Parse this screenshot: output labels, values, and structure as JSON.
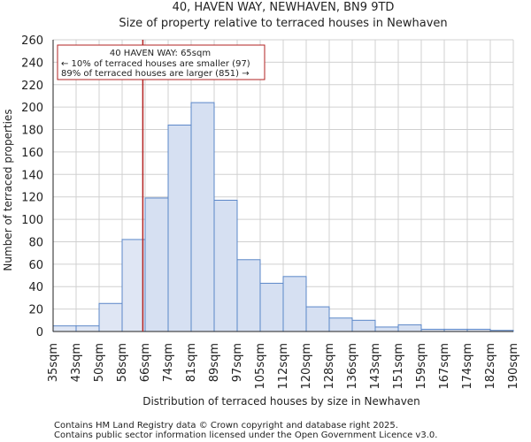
{
  "chart_data": {
    "type": "bar",
    "title": "40, HAVEN WAY, NEWHAVEN, BN9 9TD",
    "subtitle": "Size of property relative to terraced houses in Newhaven",
    "xlabel": "Distribution of terraced houses by size in Newhaven",
    "ylabel": "Number of terraced properties",
    "ylim": [
      0,
      260
    ],
    "yticks": [
      0,
      20,
      40,
      60,
      80,
      100,
      120,
      140,
      160,
      180,
      200,
      220,
      240,
      260
    ],
    "bin_edges": [
      "35sqm",
      "43sqm",
      "50sqm",
      "58sqm",
      "66sqm",
      "74sqm",
      "81sqm",
      "89sqm",
      "97sqm",
      "105sqm",
      "112sqm",
      "120sqm",
      "128sqm",
      "136sqm",
      "143sqm",
      "151sqm",
      "159sqm",
      "167sqm",
      "174sqm",
      "182sqm",
      "190sqm"
    ],
    "values": [
      5,
      5,
      25,
      82,
      119,
      184,
      204,
      117,
      64,
      43,
      49,
      22,
      12,
      10,
      4,
      6,
      2,
      2,
      2,
      1
    ],
    "highlight_bins": 4,
    "property_marker": {
      "value_sqm": 65,
      "bin_position": 3.9
    },
    "annotation": {
      "line1": "40 HAVEN WAY: 65sqm",
      "line2": "← 10% of terraced houses are smaller (97)",
      "line3": "89% of terraced houses are larger (851) →"
    },
    "colors": {
      "bar_fill": "#d6e0f2",
      "bar_fill_highlight": "#dfe6f4",
      "bar_stroke": "#5b87c8",
      "marker": "#b22222",
      "grid": "#d0d0d0"
    }
  },
  "footer": {
    "line1": "Contains HM Land Registry data © Crown copyright and database right 2025.",
    "line2": "Contains public sector information licensed under the Open Government Licence v3.0."
  }
}
